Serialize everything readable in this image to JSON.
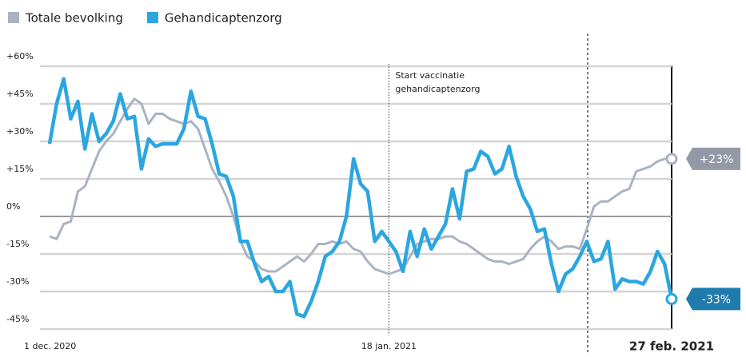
{
  "chart_data": {
    "type": "line",
    "x": [
      "2020-12-01",
      "2020-12-02",
      "2020-12-03",
      "2020-12-04",
      "2020-12-05",
      "2020-12-06",
      "2020-12-07",
      "2020-12-08",
      "2020-12-09",
      "2020-12-10",
      "2020-12-11",
      "2020-12-12",
      "2020-12-13",
      "2020-12-14",
      "2020-12-15",
      "2020-12-16",
      "2020-12-17",
      "2020-12-18",
      "2020-12-19",
      "2020-12-20",
      "2020-12-21",
      "2020-12-22",
      "2020-12-23",
      "2020-12-24",
      "2020-12-25",
      "2020-12-26",
      "2020-12-27",
      "2020-12-28",
      "2020-12-29",
      "2020-12-30",
      "2020-12-31",
      "2021-01-01",
      "2021-01-02",
      "2021-01-03",
      "2021-01-04",
      "2021-01-05",
      "2021-01-06",
      "2021-01-07",
      "2021-01-08",
      "2021-01-09",
      "2021-01-10",
      "2021-01-11",
      "2021-01-12",
      "2021-01-13",
      "2021-01-14",
      "2021-01-15",
      "2021-01-16",
      "2021-01-17",
      "2021-01-18",
      "2021-01-19",
      "2021-01-20",
      "2021-01-21",
      "2021-01-22",
      "2021-01-23",
      "2021-01-24",
      "2021-01-25",
      "2021-01-26",
      "2021-01-27",
      "2021-01-28",
      "2021-01-29",
      "2021-01-30",
      "2021-01-31",
      "2021-02-01",
      "2021-02-02",
      "2021-02-03",
      "2021-02-04",
      "2021-02-05",
      "2021-02-06",
      "2021-02-07",
      "2021-02-08",
      "2021-02-09",
      "2021-02-10",
      "2021-02-11",
      "2021-02-12",
      "2021-02-13",
      "2021-02-14",
      "2021-02-15",
      "2021-02-16",
      "2021-02-17",
      "2021-02-18",
      "2021-02-19",
      "2021-02-20",
      "2021-02-21",
      "2021-02-22",
      "2021-02-23",
      "2021-02-24",
      "2021-02-25",
      "2021-02-26",
      "2021-02-27"
    ],
    "series": [
      {
        "name": "Totale bevolking",
        "color": "#aab3c2",
        "label_color": "#939aa6",
        "values": [
          -8,
          -9,
          -3,
          -2,
          10,
          12,
          19,
          26,
          30,
          33,
          38,
          43,
          47,
          45,
          37,
          41,
          41,
          39,
          38,
          37,
          38,
          35,
          27,
          19,
          14,
          8,
          0,
          -10,
          -16,
          -18,
          -21,
          -22,
          -22,
          -20,
          -18,
          -16,
          -18,
          -15,
          -11,
          -11,
          -10,
          -11,
          -10,
          -13,
          -14,
          -18,
          -21,
          -22,
          -23,
          -22,
          -21,
          -16,
          -11,
          -10,
          -9,
          -9,
          -8,
          -8,
          -10,
          -11,
          -13,
          -15,
          -17,
          -18,
          -18,
          -19,
          -18,
          -17,
          -13,
          -10,
          -8,
          -10,
          -13,
          -12,
          -12,
          -13,
          -5,
          4,
          6,
          6,
          8,
          10,
          11,
          18,
          19,
          20,
          22,
          23,
          23
        ],
        "value_labels": [
          null,
          null,
          null,
          null,
          null,
          null,
          null,
          null,
          null,
          null,
          null,
          null,
          null,
          null,
          null,
          null,
          null,
          null,
          null,
          null,
          null,
          null,
          null,
          null,
          null,
          null,
          null,
          null,
          null,
          null,
          null,
          null,
          null,
          null,
          null,
          null,
          null,
          null,
          null,
          null,
          null,
          null,
          null,
          null,
          null,
          null,
          null,
          null,
          null,
          null,
          null,
          null,
          null,
          null,
          null,
          null,
          null,
          null,
          null,
          null,
          null,
          null,
          null,
          null,
          null,
          null,
          null,
          null,
          null,
          null,
          null,
          null,
          null,
          null,
          null,
          null,
          null,
          null,
          null,
          null,
          null,
          null,
          null,
          null,
          null,
          null,
          null,
          null,
          "+23%"
        ]
      },
      {
        "name": "Gehandicaptenzorg",
        "color": "#2ba6e0",
        "label_color": "#1f7bab",
        "values": [
          29,
          45,
          55,
          39,
          46,
          27,
          41,
          30,
          33,
          38,
          49,
          39,
          40,
          19,
          31,
          28,
          29,
          29,
          29,
          35,
          50,
          40,
          39,
          29,
          17,
          16,
          8,
          -10,
          -10,
          -19,
          -26,
          -24,
          -30,
          -30,
          -26,
          -39,
          -40,
          -34,
          -26,
          -16,
          -14,
          -10,
          0,
          23,
          13,
          10,
          -10,
          -6,
          -10,
          -14,
          -22,
          -6,
          -16,
          -5,
          -13,
          -8,
          -3,
          11,
          -1,
          18,
          19,
          26,
          24,
          17,
          19,
          28,
          16,
          8,
          3,
          -6,
          -5,
          -19,
          -30,
          -23,
          -21,
          -16,
          -10,
          -18,
          -17,
          -10,
          -29,
          -25,
          -26,
          -26,
          -27,
          -22,
          -14,
          -19,
          -33
        ],
        "value_labels": [
          null,
          null,
          null,
          null,
          null,
          null,
          null,
          null,
          null,
          null,
          null,
          null,
          null,
          null,
          null,
          null,
          null,
          null,
          null,
          null,
          null,
          null,
          null,
          null,
          null,
          null,
          null,
          null,
          null,
          null,
          null,
          null,
          null,
          null,
          null,
          null,
          null,
          null,
          null,
          null,
          null,
          null,
          null,
          null,
          null,
          null,
          null,
          null,
          null,
          null,
          null,
          null,
          null,
          null,
          null,
          null,
          null,
          null,
          null,
          null,
          null,
          null,
          null,
          null,
          null,
          null,
          null,
          null,
          null,
          null,
          null,
          null,
          null,
          null,
          null,
          null,
          null,
          null,
          null,
          null,
          null,
          null,
          null,
          null,
          null,
          null,
          null,
          null,
          "-33%"
        ]
      }
    ],
    "xlim": [
      "2020-12-01",
      "2021-02-27"
    ],
    "xticks": [
      {
        "value": "2020-12-01",
        "label": "1 dec. 2020"
      },
      {
        "value": "2021-01-18",
        "label": "18 jan. 2021"
      },
      {
        "value": "2021-02-27",
        "label": "27 feb. 2021"
      }
    ],
    "ylim": [
      -45,
      60
    ],
    "yticks": [
      {
        "value": -45,
        "label": "-45%"
      },
      {
        "value": -30,
        "label": "-30%"
      },
      {
        "value": -15,
        "label": "-15%"
      },
      {
        "value": 0,
        "label": "0%"
      },
      {
        "value": 15,
        "label": "+15%"
      },
      {
        "value": 30,
        "label": "+30%"
      },
      {
        "value": 45,
        "label": "+45%"
      },
      {
        "value": 60,
        "label": "+60%"
      }
    ],
    "grid": true,
    "legend": "top-left",
    "annotation": {
      "x": "2021-01-18",
      "text": [
        "Start vaccinatie",
        "gehandicaptenzorg"
      ]
    }
  }
}
